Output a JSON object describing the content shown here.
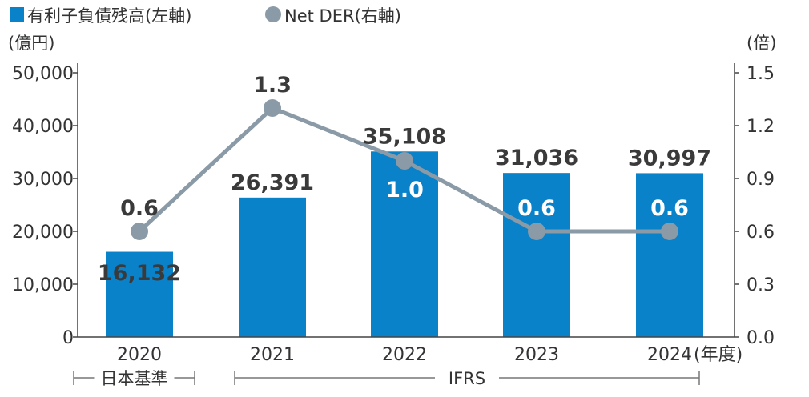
{
  "chart_data": {
    "type": "bar",
    "categories": [
      "2020",
      "2021",
      "2022",
      "2023",
      "2024"
    ],
    "x_suffix": "(年度)",
    "series": [
      {
        "name": "有利子負債残高(左軸)",
        "type": "bar",
        "axis": "left",
        "color": "#0a82c9",
        "values": [
          16132,
          26391,
          35108,
          31036,
          30997
        ],
        "labels": [
          "16,132",
          "26,391",
          "35,108",
          "31,036",
          "30,997"
        ]
      },
      {
        "name": "Net DER(右軸)",
        "type": "line",
        "axis": "right",
        "color": "#8a9aa6",
        "values": [
          0.6,
          1.3,
          1.0,
          0.6,
          0.6
        ],
        "labels": [
          "0.6",
          "1.3",
          "1.0",
          "0.6",
          "0.6"
        ]
      }
    ],
    "y_left": {
      "unit": "(億円)",
      "ylim": [
        0,
        50000
      ],
      "ticks": [
        "0",
        "10,000",
        "20,000",
        "30,000",
        "40,000",
        "50,000"
      ]
    },
    "y_right": {
      "unit": "(倍)",
      "ylim": [
        0,
        1.5
      ],
      "ticks": [
        "0.0",
        "0.3",
        "0.6",
        "0.9",
        "1.2",
        "1.5"
      ]
    },
    "groups": [
      {
        "label": "日本基準",
        "from": 0,
        "to": 0
      },
      {
        "label": "IFRS",
        "from": 1,
        "to": 4
      }
    ],
    "grid": false,
    "legend_position": "top-left"
  }
}
